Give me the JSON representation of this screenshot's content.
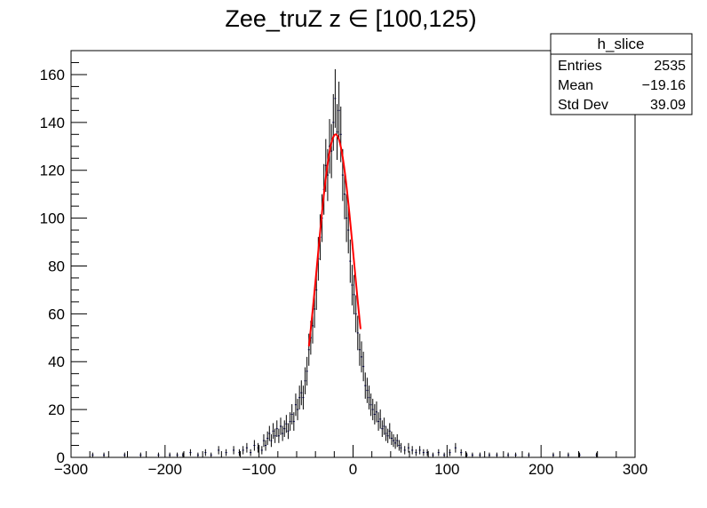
{
  "chart_data": {
    "type": "histogram",
    "title": "Zee_truZ z  ∈ [100,125)",
    "xlabel": "",
    "ylabel": "",
    "xlim": [
      -300,
      300
    ],
    "ylim": [
      0,
      170
    ],
    "x_ticks": [
      -300,
      -200,
      -100,
      0,
      100,
      200,
      300
    ],
    "x_tick_labels": [
      "−300",
      "−200",
      "−100",
      "0",
      "100",
      "200",
      "300"
    ],
    "y_ticks": [
      0,
      20,
      40,
      60,
      80,
      100,
      120,
      140,
      160
    ],
    "y_tick_labels": [
      "0",
      "20",
      "40",
      "60",
      "80",
      "100",
      "120",
      "140",
      "160"
    ],
    "grid": false,
    "bin_width": 2,
    "histogram_color": "#000080",
    "fit_color": "#ff0000",
    "stats_box": {
      "name": "h_slice",
      "rows": [
        {
          "label": "Entries",
          "value": "2535"
        },
        {
          "label": "Mean",
          "value": "−19.16"
        },
        {
          "label": "Std Dev",
          "value": "39.09"
        }
      ]
    },
    "fit": {
      "type": "gaussian",
      "amplitude": 135,
      "mean": -18.5,
      "sigma": 19.5,
      "range": [
        -47,
        8
      ]
    },
    "series": [
      {
        "bins": [
          {
            "x": -277,
            "y": 1
          },
          {
            "x": -265,
            "y": 1
          },
          {
            "x": -243,
            "y": 1
          },
          {
            "x": -226,
            "y": 1
          },
          {
            "x": -207,
            "y": 1
          },
          {
            "x": -195,
            "y": 1
          },
          {
            "x": -187,
            "y": 1
          },
          {
            "x": -181,
            "y": 1
          },
          {
            "x": -173,
            "y": 2
          },
          {
            "x": -165,
            "y": 1
          },
          {
            "x": -157,
            "y": 2
          },
          {
            "x": -151,
            "y": 1
          },
          {
            "x": -143,
            "y": 3
          },
          {
            "x": -135,
            "y": 2
          },
          {
            "x": -127,
            "y": 3
          },
          {
            "x": -121,
            "y": 2
          },
          {
            "x": -117,
            "y": 3
          },
          {
            "x": -113,
            "y": 4
          },
          {
            "x": -109,
            "y": 2
          },
          {
            "x": -105,
            "y": 5
          },
          {
            "x": -101,
            "y": 4
          },
          {
            "x": -97,
            "y": 3
          },
          {
            "x": -95,
            "y": 7
          },
          {
            "x": -93,
            "y": 5
          },
          {
            "x": -91,
            "y": 8
          },
          {
            "x": -89,
            "y": 10
          },
          {
            "x": -87,
            "y": 7
          },
          {
            "x": -85,
            "y": 11
          },
          {
            "x": -83,
            "y": 9
          },
          {
            "x": -81,
            "y": 12
          },
          {
            "x": -79,
            "y": 9
          },
          {
            "x": -77,
            "y": 13
          },
          {
            "x": -75,
            "y": 10
          },
          {
            "x": -73,
            "y": 12
          },
          {
            "x": -71,
            "y": 14
          },
          {
            "x": -69,
            "y": 11
          },
          {
            "x": -67,
            "y": 15
          },
          {
            "x": -65,
            "y": 18
          },
          {
            "x": -63,
            "y": 15
          },
          {
            "x": -61,
            "y": 22
          },
          {
            "x": -59,
            "y": 20
          },
          {
            "x": -57,
            "y": 25
          },
          {
            "x": -55,
            "y": 27
          },
          {
            "x": -53,
            "y": 25
          },
          {
            "x": -51,
            "y": 32
          },
          {
            "x": -49,
            "y": 36
          },
          {
            "x": -47,
            "y": 45
          },
          {
            "x": -45,
            "y": 50
          },
          {
            "x": -43,
            "y": 55
          },
          {
            "x": -41,
            "y": 62
          },
          {
            "x": -39,
            "y": 70
          },
          {
            "x": -37,
            "y": 83
          },
          {
            "x": -35,
            "y": 92
          },
          {
            "x": -33,
            "y": 100
          },
          {
            "x": -31,
            "y": 112
          },
          {
            "x": -29,
            "y": 122
          },
          {
            "x": -27,
            "y": 118
          },
          {
            "x": -25,
            "y": 130
          },
          {
            "x": -23,
            "y": 128
          },
          {
            "x": -21,
            "y": 140
          },
          {
            "x": -19,
            "y": 150
          },
          {
            "x": -17,
            "y": 136
          },
          {
            "x": -15,
            "y": 145
          },
          {
            "x": -13,
            "y": 135
          },
          {
            "x": -11,
            "y": 118
          },
          {
            "x": -9,
            "y": 110
          },
          {
            "x": -7,
            "y": 100
          },
          {
            "x": -5,
            "y": 95
          },
          {
            "x": -3,
            "y": 82
          },
          {
            "x": -1,
            "y": 72
          },
          {
            "x": 1,
            "y": 68
          },
          {
            "x": 3,
            "y": 60
          },
          {
            "x": 5,
            "y": 52
          },
          {
            "x": 7,
            "y": 45
          },
          {
            "x": 9,
            "y": 42
          },
          {
            "x": 11,
            "y": 38
          },
          {
            "x": 13,
            "y": 30
          },
          {
            "x": 15,
            "y": 28
          },
          {
            "x": 17,
            "y": 25
          },
          {
            "x": 19,
            "y": 22
          },
          {
            "x": 21,
            "y": 20
          },
          {
            "x": 23,
            "y": 18
          },
          {
            "x": 25,
            "y": 19
          },
          {
            "x": 27,
            "y": 15
          },
          {
            "x": 29,
            "y": 16
          },
          {
            "x": 31,
            "y": 12
          },
          {
            "x": 33,
            "y": 13
          },
          {
            "x": 35,
            "y": 10
          },
          {
            "x": 37,
            "y": 9
          },
          {
            "x": 39,
            "y": 11
          },
          {
            "x": 41,
            "y": 8
          },
          {
            "x": 43,
            "y": 7
          },
          {
            "x": 45,
            "y": 6
          },
          {
            "x": 47,
            "y": 7
          },
          {
            "x": 49,
            "y": 5
          },
          {
            "x": 51,
            "y": 4
          },
          {
            "x": 55,
            "y": 3
          },
          {
            "x": 59,
            "y": 4
          },
          {
            "x": 63,
            "y": 3
          },
          {
            "x": 67,
            "y": 2
          },
          {
            "x": 71,
            "y": 3
          },
          {
            "x": 75,
            "y": 2
          },
          {
            "x": 79,
            "y": 2
          },
          {
            "x": 85,
            "y": 1
          },
          {
            "x": 91,
            "y": 2
          },
          {
            "x": 97,
            "y": 1
          },
          {
            "x": 103,
            "y": 2
          },
          {
            "x": 109,
            "y": 4
          },
          {
            "x": 115,
            "y": 2
          },
          {
            "x": 121,
            "y": 1
          },
          {
            "x": 127,
            "y": 1
          },
          {
            "x": 135,
            "y": 1
          },
          {
            "x": 145,
            "y": 1
          },
          {
            "x": 153,
            "y": 1
          },
          {
            "x": 165,
            "y": 1
          },
          {
            "x": 173,
            "y": 1
          },
          {
            "x": 187,
            "y": 1
          },
          {
            "x": 213,
            "y": 1
          },
          {
            "x": 229,
            "y": 1
          },
          {
            "x": 241,
            "y": 1
          },
          {
            "x": 259,
            "y": 1
          }
        ]
      }
    ]
  }
}
